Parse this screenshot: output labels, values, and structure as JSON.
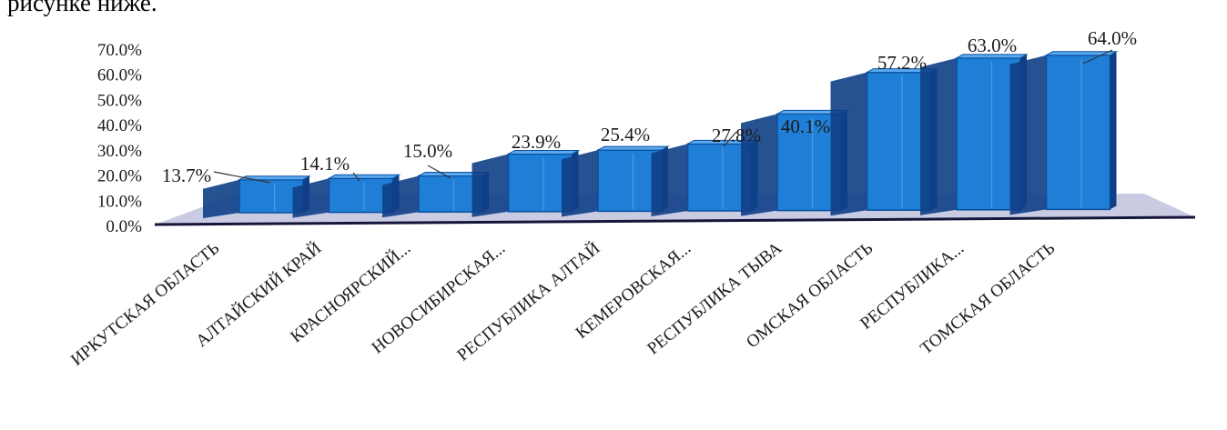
{
  "intro_text": "рисунке ниже.",
  "chart_data": {
    "type": "bar",
    "title": "",
    "xlabel": "",
    "ylabel": "",
    "ylim": [
      0,
      70
    ],
    "y_ticks": [
      "0.0%",
      "10.0%",
      "20.0%",
      "30.0%",
      "40.0%",
      "50.0%",
      "60.0%",
      "70.0%"
    ],
    "categories": [
      "ИРКУТСКАЯ ОБЛАСТЬ",
      "АЛТАЙСКИЙ КРАЙ",
      "КРАСНОЯРСКИЙ...",
      "НОВОСИБИРСКАЯ...",
      "РЕСПУБЛИКА АЛТАЙ",
      "КЕМЕРОВСКАЯ...",
      "РЕСПУБЛИКА ТЫВА",
      "ОМСКАЯ ОБЛАСТЬ",
      "РЕСПУБЛИКА...",
      "ТОМСКАЯ ОБЛАСТЬ"
    ],
    "values": [
      13.7,
      14.1,
      15.0,
      23.9,
      25.4,
      27.8,
      40.1,
      57.2,
      63.0,
      64.0
    ],
    "data_labels": [
      "13.7%",
      "14.1%",
      "15.0%",
      "23.9%",
      "25.4%",
      "27.8%",
      "40.1%",
      "57.2%",
      "63.0%",
      "64.0%"
    ],
    "style": "3d-column",
    "colors": {
      "front": "#1f7fd6",
      "side": "#0f3f86",
      "top": "#5aa9ee",
      "floor": "#c9cbe3",
      "axis": "#15153a"
    }
  }
}
